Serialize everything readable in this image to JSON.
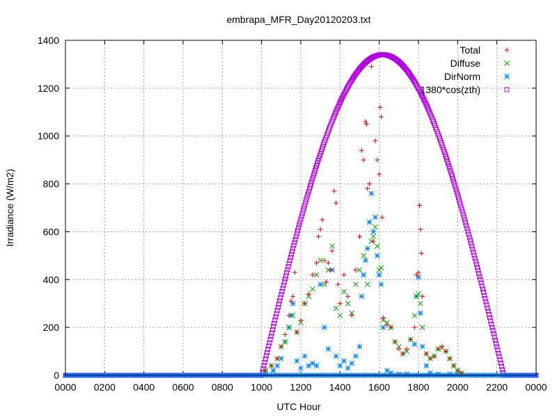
{
  "chart_data": {
    "type": "scatter",
    "title": "embrapa_MFR_Day20120203.txt",
    "xlabel": "UTC Hour",
    "ylabel": "Irradiance (W/m2)",
    "xlim": [
      0,
      24
    ],
    "ylim": [
      0,
      1400
    ],
    "grid": true,
    "legend_position": "top-right",
    "x_tick_labels": [
      "0000",
      "0200",
      "0400",
      "0600",
      "0800",
      "1000",
      "1200",
      "1400",
      "1600",
      "1800",
      "2000",
      "2200",
      "0000"
    ],
    "y_ticks": [
      0,
      200,
      400,
      600,
      800,
      1000,
      1200,
      1400
    ],
    "series": [
      {
        "name": "Total",
        "marker": "plus",
        "color": "#e00000",
        "points": [
          [
            10.2,
            20
          ],
          [
            10.5,
            40
          ],
          [
            10.8,
            70
          ],
          [
            11.0,
            120
          ],
          [
            11.2,
            170
          ],
          [
            11.4,
            250
          ],
          [
            11.5,
            310
          ],
          [
            11.6,
            330
          ],
          [
            11.7,
            430
          ],
          [
            11.8,
            180
          ],
          [
            12.0,
            230
          ],
          [
            12.2,
            300
          ],
          [
            12.4,
            340
          ],
          [
            12.6,
            420
          ],
          [
            12.8,
            470
          ],
          [
            12.9,
            580
          ],
          [
            13.0,
            610
          ],
          [
            13.1,
            650
          ],
          [
            13.2,
            480
          ],
          [
            13.3,
            390
          ],
          [
            13.4,
            470
          ],
          [
            13.5,
            440
          ],
          [
            13.6,
            520
          ],
          [
            13.7,
            770
          ],
          [
            13.8,
            720
          ],
          [
            13.9,
            380
          ],
          [
            14.0,
            300
          ],
          [
            14.2,
            420
          ],
          [
            14.4,
            330
          ],
          [
            14.6,
            250
          ],
          [
            14.8,
            440
          ],
          [
            15.0,
            580
          ],
          [
            15.1,
            940
          ],
          [
            15.2,
            900
          ],
          [
            15.3,
            1060
          ],
          [
            15.35,
            1050
          ],
          [
            15.4,
            780
          ],
          [
            15.5,
            800
          ],
          [
            15.6,
            1290
          ],
          [
            15.7,
            560
          ],
          [
            15.8,
            980
          ],
          [
            15.9,
            900
          ],
          [
            16.0,
            840
          ],
          [
            16.05,
            1120
          ],
          [
            16.1,
            1080
          ],
          [
            16.15,
            660
          ],
          [
            16.2,
            240
          ],
          [
            16.4,
            210
          ],
          [
            16.6,
            200
          ],
          [
            16.8,
            140
          ],
          [
            17.0,
            110
          ],
          [
            17.2,
            90
          ],
          [
            17.4,
            110
          ],
          [
            17.6,
            150
          ],
          [
            17.8,
            200
          ],
          [
            17.9,
            420
          ],
          [
            18.0,
            430
          ],
          [
            18.05,
            710
          ],
          [
            18.1,
            610
          ],
          [
            18.15,
            510
          ],
          [
            18.2,
            330
          ],
          [
            18.4,
            90
          ],
          [
            18.6,
            70
          ],
          [
            18.8,
            80
          ],
          [
            19.0,
            110
          ],
          [
            19.2,
            120
          ],
          [
            19.4,
            100
          ],
          [
            19.6,
            70
          ],
          [
            19.8,
            40
          ],
          [
            20.0,
            20
          ],
          [
            20.2,
            10
          ]
        ]
      },
      {
        "name": "Diffuse",
        "marker": "cross",
        "color": "#00a000",
        "points": [
          [
            10.2,
            20
          ],
          [
            10.5,
            40
          ],
          [
            10.8,
            70
          ],
          [
            11.0,
            120
          ],
          [
            11.2,
            140
          ],
          [
            11.4,
            200
          ],
          [
            11.6,
            250
          ],
          [
            11.8,
            180
          ],
          [
            12.0,
            220
          ],
          [
            12.2,
            300
          ],
          [
            12.4,
            330
          ],
          [
            12.6,
            360
          ],
          [
            12.8,
            420
          ],
          [
            13.0,
            480
          ],
          [
            13.2,
            380
          ],
          [
            13.4,
            440
          ],
          [
            13.6,
            540
          ],
          [
            13.8,
            280
          ],
          [
            14.0,
            250
          ],
          [
            14.2,
            350
          ],
          [
            14.4,
            300
          ],
          [
            14.6,
            260
          ],
          [
            14.8,
            380
          ],
          [
            15.0,
            440
          ],
          [
            15.2,
            500
          ],
          [
            15.4,
            380
          ],
          [
            15.6,
            560
          ],
          [
            15.7,
            580
          ],
          [
            15.8,
            620
          ],
          [
            15.9,
            540
          ],
          [
            16.0,
            440
          ],
          [
            16.1,
            450
          ],
          [
            16.2,
            230
          ],
          [
            16.4,
            220
          ],
          [
            16.6,
            200
          ],
          [
            16.8,
            140
          ],
          [
            17.0,
            120
          ],
          [
            17.2,
            90
          ],
          [
            17.4,
            100
          ],
          [
            17.6,
            150
          ],
          [
            17.8,
            250
          ],
          [
            17.9,
            330
          ],
          [
            18.0,
            340
          ],
          [
            18.1,
            300
          ],
          [
            18.2,
            200
          ],
          [
            18.4,
            90
          ],
          [
            18.6,
            70
          ],
          [
            18.8,
            80
          ],
          [
            19.0,
            110
          ],
          [
            19.2,
            115
          ],
          [
            19.4,
            100
          ],
          [
            19.6,
            70
          ],
          [
            19.8,
            40
          ],
          [
            20.0,
            20
          ],
          [
            20.2,
            10
          ]
        ]
      },
      {
        "name": "DirNorm",
        "marker": "star",
        "color": "#0080ff",
        "points": [
          [
            10.2,
            5
          ],
          [
            10.6,
            20
          ],
          [
            10.8,
            40
          ],
          [
            11.0,
            70
          ],
          [
            11.2,
            140
          ],
          [
            11.4,
            200
          ],
          [
            11.5,
            250
          ],
          [
            11.6,
            300
          ],
          [
            11.8,
            60
          ],
          [
            12.0,
            30
          ],
          [
            12.2,
            80
          ],
          [
            12.4,
            40
          ],
          [
            12.6,
            50
          ],
          [
            12.8,
            40
          ],
          [
            13.0,
            380
          ],
          [
            13.2,
            200
          ],
          [
            13.4,
            110
          ],
          [
            13.6,
            440
          ],
          [
            13.8,
            80
          ],
          [
            14.0,
            40
          ],
          [
            14.2,
            60
          ],
          [
            14.4,
            30
          ],
          [
            14.6,
            50
          ],
          [
            14.8,
            80
          ],
          [
            15.0,
            120
          ],
          [
            15.1,
            330
          ],
          [
            15.2,
            420
          ],
          [
            15.3,
            480
          ],
          [
            15.4,
            530
          ],
          [
            15.5,
            640
          ],
          [
            15.6,
            760
          ],
          [
            15.7,
            600
          ],
          [
            15.8,
            660
          ],
          [
            15.9,
            500
          ],
          [
            16.0,
            420
          ],
          [
            16.1,
            380
          ],
          [
            16.2,
            200
          ],
          [
            16.4,
            20
          ],
          [
            16.6,
            10
          ],
          [
            17.0,
            5
          ],
          [
            17.4,
            5
          ],
          [
            17.8,
            130
          ],
          [
            17.9,
            330
          ],
          [
            18.0,
            410
          ],
          [
            18.1,
            260
          ],
          [
            18.2,
            120
          ],
          [
            18.4,
            40
          ],
          [
            18.6,
            10
          ],
          [
            19.0,
            5
          ],
          [
            19.6,
            5
          ],
          [
            20.0,
            5
          ],
          [
            21.0,
            0
          ]
        ]
      },
      {
        "name": "1380*cos(zth)",
        "marker": "square",
        "color": "#b000e0",
        "amplitude": 1340,
        "sunrise": 10.0,
        "sunset": 22.35,
        "note_values": "curve rises from 0 at ~1000 UTC to a peak of ~1340 at ~1610 UTC and returns to 0 at ~2220 UTC"
      }
    ]
  }
}
